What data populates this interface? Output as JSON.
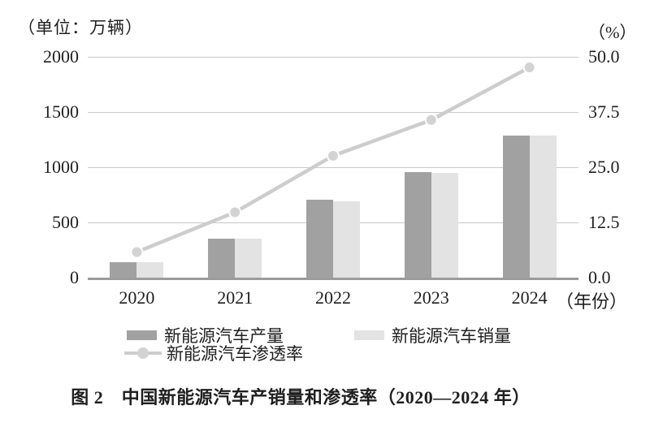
{
  "chart_data": {
    "type": "bar",
    "subtype": "grouped-bars-with-line-overlay",
    "categories": [
      "2020",
      "2021",
      "2022",
      "2023",
      "2024"
    ],
    "series": [
      {
        "name": "新能源汽车产量",
        "type": "bar",
        "axis": "left",
        "color": "#a1a1a1",
        "values": [
          136.6,
          354.5,
          705.8,
          958.7,
          1288.8
        ]
      },
      {
        "name": "新能源汽车销量",
        "type": "bar",
        "axis": "left",
        "color": "#e3e3e3",
        "values": [
          136.7,
          352.1,
          688.7,
          949.5,
          1286.6
        ]
      },
      {
        "name": "新能源汽车渗透率",
        "type": "line",
        "axis": "right",
        "color": "#cdcdcd",
        "marker_color": "#d3d3d3",
        "values": [
          5.8,
          14.8,
          27.6,
          35.7,
          47.6
        ]
      }
    ],
    "left_axis": {
      "unit_label": "（单位：万辆）",
      "min": 0,
      "max": 2000,
      "tick_labels": [
        "2000",
        "1500",
        "1000",
        "500",
        "0"
      ]
    },
    "right_axis": {
      "unit_label": "（%）",
      "min": 0,
      "max": 50,
      "tick_labels": [
        "50.0",
        "37.5",
        "25.0",
        "12.5",
        "0.0"
      ]
    },
    "x_axis_suffix": "（年份）",
    "grid": true,
    "gridline_color": "#c9c9c9",
    "baseline_color": "#9b9b9b",
    "legend_position": "bottom"
  },
  "caption": {
    "text": "图 2　中国新能源汽车产销量和渗透率（2020—2024 年）"
  }
}
